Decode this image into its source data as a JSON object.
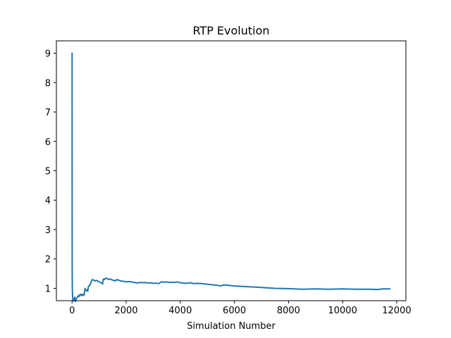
{
  "chart_data": {
    "type": "line",
    "title": "RTP Evolution",
    "xlabel": "Simulation Number",
    "ylabel": "",
    "xlim": [
      -580,
      12340
    ],
    "ylim": [
      0.58,
      9.42
    ],
    "xticks": [
      0,
      2000,
      4000,
      6000,
      8000,
      10000,
      12000
    ],
    "yticks": [
      1,
      2,
      3,
      4,
      5,
      6,
      7,
      8,
      9
    ],
    "grid": false,
    "legend": "none",
    "line_color": "#1f77b4",
    "series": [
      {
        "x": [
          0,
          1,
          2,
          3,
          5,
          8,
          12,
          20,
          30,
          45,
          60,
          80,
          100,
          120,
          150,
          180,
          200,
          230,
          260,
          300,
          330,
          360,
          380,
          400,
          420,
          450,
          480,
          500,
          540,
          560,
          580,
          600,
          650,
          700,
          720,
          750,
          800,
          850,
          900,
          950,
          1000,
          1050,
          1100,
          1130,
          1150,
          1180,
          1200,
          1250,
          1300,
          1350,
          1400,
          1450,
          1500,
          1550,
          1600,
          1650,
          1700,
          1750,
          1800,
          1900,
          2000,
          2100,
          2200,
          2300,
          2400,
          2500,
          2600,
          2700,
          2800,
          2900,
          3000,
          3100,
          3200,
          3300,
          3400,
          3500,
          3600,
          3700,
          3800,
          3900,
          4000,
          4100,
          4200,
          4300,
          4400,
          4500,
          4600,
          4800,
          5000,
          5200,
          5400,
          5500,
          5600,
          5800,
          6000,
          6200,
          6400,
          6600,
          6800,
          7000,
          7500,
          8000,
          8500,
          9000,
          9500,
          10000,
          10500,
          11000,
          11300,
          11500,
          11750
        ],
        "y": [
          9.0,
          9.0,
          5.0,
          3.2,
          1.6,
          1.2,
          0.9,
          0.7,
          0.62,
          0.58,
          0.6,
          0.65,
          0.7,
          0.55,
          0.63,
          0.68,
          0.7,
          0.75,
          0.72,
          0.8,
          0.78,
          0.75,
          0.8,
          0.78,
          0.76,
          0.78,
          1.0,
          0.95,
          0.92,
          0.95,
          0.9,
          1.05,
          1.1,
          1.2,
          1.25,
          1.3,
          1.28,
          1.25,
          1.27,
          1.25,
          1.22,
          1.2,
          1.18,
          1.15,
          1.3,
          1.32,
          1.3,
          1.35,
          1.33,
          1.3,
          1.32,
          1.3,
          1.28,
          1.27,
          1.25,
          1.3,
          1.28,
          1.27,
          1.25,
          1.24,
          1.22,
          1.23,
          1.22,
          1.2,
          1.18,
          1.2,
          1.19,
          1.2,
          1.18,
          1.19,
          1.17,
          1.18,
          1.16,
          1.22,
          1.21,
          1.22,
          1.2,
          1.21,
          1.2,
          1.22,
          1.19,
          1.18,
          1.17,
          1.18,
          1.19,
          1.16,
          1.17,
          1.16,
          1.14,
          1.12,
          1.1,
          1.08,
          1.12,
          1.1,
          1.08,
          1.07,
          1.06,
          1.05,
          1.04,
          1.03,
          1.0,
          0.99,
          0.97,
          0.98,
          0.97,
          0.98,
          0.97,
          0.97,
          0.96,
          0.98,
          0.98
        ]
      }
    ]
  }
}
